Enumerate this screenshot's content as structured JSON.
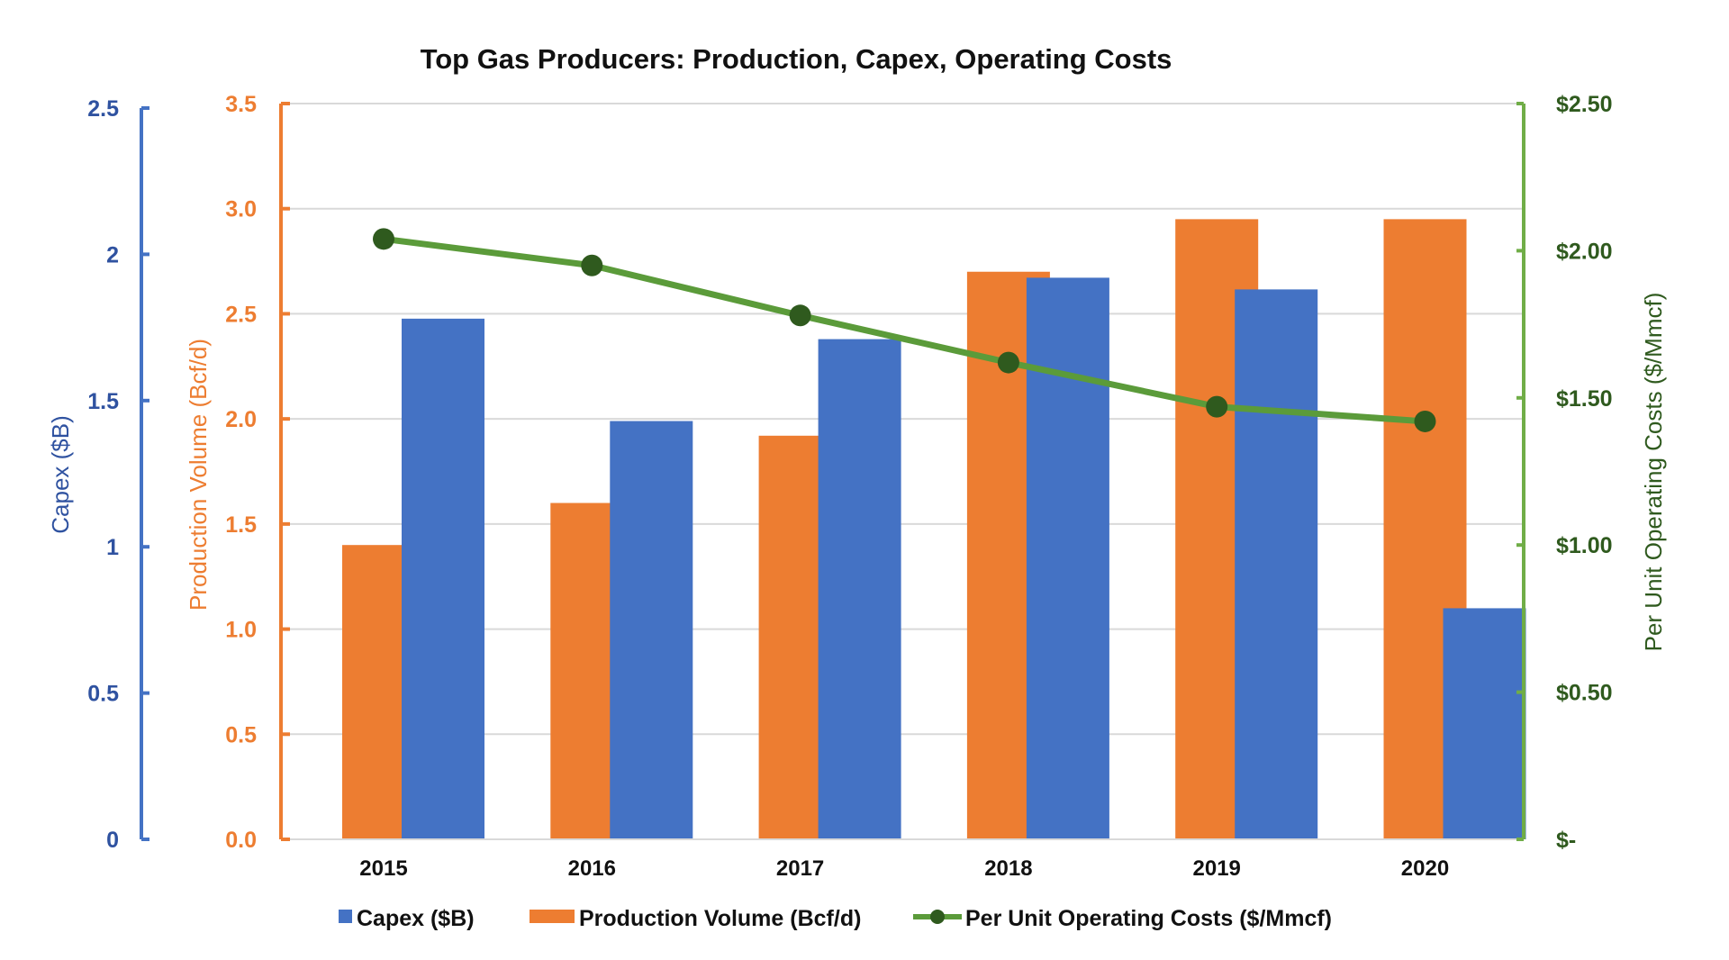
{
  "chart_data": {
    "type": "bar",
    "title": "Top Gas Producers: Production, Capex, Operating Costs",
    "categories": [
      "2015",
      "2016",
      "2017",
      "2018",
      "2019",
      "2020"
    ],
    "series": [
      {
        "name": "Capex ($B)",
        "type": "bar",
        "axis": "left-outer",
        "color": "#4472C4",
        "values": [
          1.78,
          1.43,
          1.71,
          1.92,
          1.88,
          0.79
        ]
      },
      {
        "name": "Production Volume (Bcf/d)",
        "type": "bar",
        "axis": "left-inner",
        "color": "#ED7D31",
        "values": [
          1.4,
          1.6,
          1.92,
          2.7,
          2.95,
          2.95
        ]
      },
      {
        "name": "Per Unit Operating Costs ($/Mmcf)",
        "type": "line",
        "axis": "right",
        "color": "#5B9B3A",
        "marker_color": "#2F5A1E",
        "values": [
          2.04,
          1.95,
          1.78,
          1.62,
          1.47,
          1.42
        ]
      }
    ],
    "axes": {
      "capex": {
        "label": "Capex ($B)",
        "range": [
          0,
          2.5
        ],
        "ticks": [
          "0",
          "0.5",
          "1",
          "1.5",
          "2",
          "2.5"
        ],
        "color": "#2F52A0"
      },
      "production": {
        "label": "Production Volume (Bcf/d)",
        "range": [
          0,
          3.5
        ],
        "ticks": [
          "0.0",
          "0.5",
          "1.0",
          "1.5",
          "2.0",
          "2.5",
          "3.0",
          "3.5"
        ],
        "color": "#ED7D31"
      },
      "cost": {
        "label": "Per Unit Operating Costs ($/Mmcf)",
        "range": [
          0,
          2.5
        ],
        "ticks": [
          "$-",
          "$0.50",
          "$1.00",
          "$1.50",
          "$2.00",
          "$2.50"
        ],
        "color": "#2F5A1E",
        "axis_color": "#70AD47"
      }
    },
    "grid": true,
    "legend": "bottom"
  }
}
